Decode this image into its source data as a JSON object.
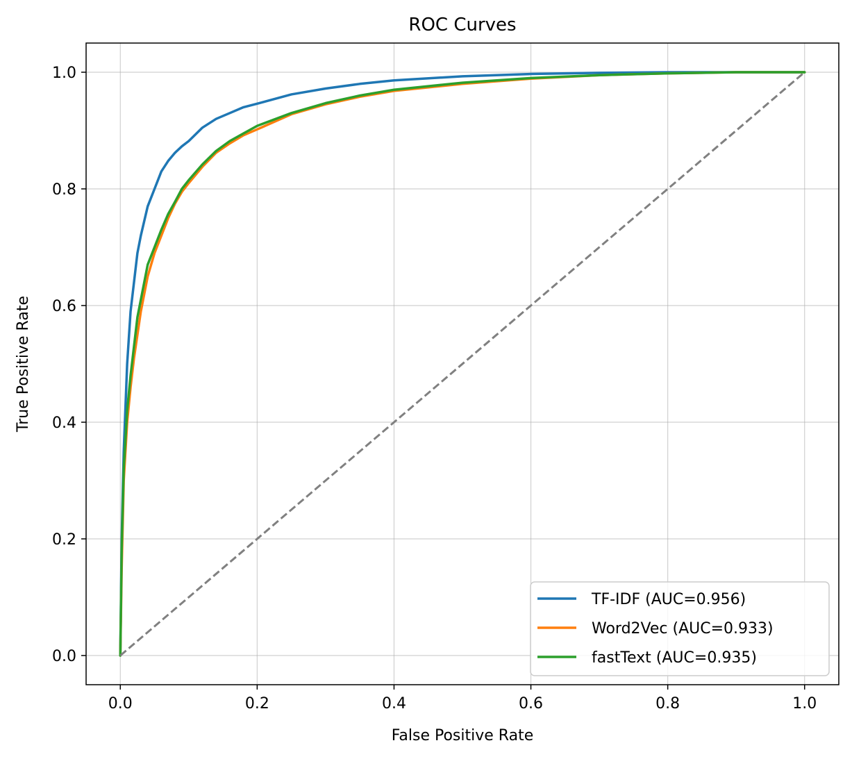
{
  "chart_data": {
    "type": "line",
    "title": "ROC Curves",
    "xlabel": "False Positive Rate",
    "ylabel": "True Positive Rate",
    "xlim": [
      -0.05,
      1.05
    ],
    "ylim": [
      -0.05,
      1.05
    ],
    "xticks": [
      0.0,
      0.2,
      0.4,
      0.6,
      0.8,
      1.0
    ],
    "yticks": [
      0.0,
      0.2,
      0.4,
      0.6,
      0.8,
      1.0
    ],
    "xtick_labels": [
      "0.0",
      "0.2",
      "0.4",
      "0.6",
      "0.8",
      "1.0"
    ],
    "ytick_labels": [
      "0.0",
      "0.2",
      "0.4",
      "0.6",
      "0.8",
      "1.0"
    ],
    "grid": true,
    "legend_position": "lower right",
    "series": [
      {
        "name": "TF-IDF (AUC=0.956)",
        "color": "#1f77b4",
        "x": [
          0.0,
          0.002,
          0.005,
          0.01,
          0.015,
          0.02,
          0.025,
          0.03,
          0.04,
          0.05,
          0.06,
          0.07,
          0.08,
          0.09,
          0.1,
          0.12,
          0.14,
          0.16,
          0.18,
          0.2,
          0.25,
          0.3,
          0.35,
          0.4,
          0.5,
          0.6,
          0.7,
          0.8,
          0.9,
          1.0
        ],
        "y": [
          0.0,
          0.2,
          0.35,
          0.5,
          0.59,
          0.64,
          0.69,
          0.72,
          0.77,
          0.8,
          0.83,
          0.848,
          0.862,
          0.873,
          0.882,
          0.905,
          0.92,
          0.93,
          0.94,
          0.946,
          0.962,
          0.972,
          0.98,
          0.986,
          0.993,
          0.997,
          0.999,
          1.0,
          1.0,
          1.0
        ]
      },
      {
        "name": "Word2Vec (AUC=0.933)",
        "color": "#ff7f0e",
        "x": [
          0.0,
          0.002,
          0.005,
          0.01,
          0.015,
          0.02,
          0.025,
          0.03,
          0.04,
          0.05,
          0.06,
          0.07,
          0.08,
          0.09,
          0.1,
          0.12,
          0.14,
          0.16,
          0.18,
          0.2,
          0.25,
          0.3,
          0.35,
          0.4,
          0.5,
          0.6,
          0.7,
          0.8,
          0.9,
          1.0
        ],
        "y": [
          0.0,
          0.15,
          0.3,
          0.4,
          0.46,
          0.51,
          0.55,
          0.59,
          0.65,
          0.69,
          0.72,
          0.75,
          0.775,
          0.795,
          0.81,
          0.838,
          0.862,
          0.878,
          0.892,
          0.902,
          0.928,
          0.945,
          0.958,
          0.968,
          0.98,
          0.989,
          0.995,
          0.998,
          1.0,
          1.0
        ]
      },
      {
        "name": "fastText (AUC=0.935)",
        "color": "#2ca02c",
        "x": [
          0.0,
          0.002,
          0.005,
          0.01,
          0.015,
          0.02,
          0.025,
          0.03,
          0.04,
          0.05,
          0.06,
          0.07,
          0.08,
          0.09,
          0.1,
          0.12,
          0.14,
          0.16,
          0.18,
          0.2,
          0.25,
          0.3,
          0.35,
          0.4,
          0.5,
          0.6,
          0.7,
          0.8,
          0.9,
          1.0
        ],
        "y": [
          0.0,
          0.18,
          0.32,
          0.42,
          0.48,
          0.53,
          0.58,
          0.61,
          0.67,
          0.7,
          0.73,
          0.757,
          0.778,
          0.8,
          0.815,
          0.842,
          0.865,
          0.882,
          0.895,
          0.908,
          0.93,
          0.947,
          0.96,
          0.97,
          0.982,
          0.99,
          0.995,
          0.998,
          1.0,
          1.0
        ]
      }
    ],
    "reference_line": {
      "style": "dashed",
      "color": "#808080",
      "x": [
        0.0,
        1.0
      ],
      "y": [
        0.0,
        1.0
      ]
    }
  }
}
